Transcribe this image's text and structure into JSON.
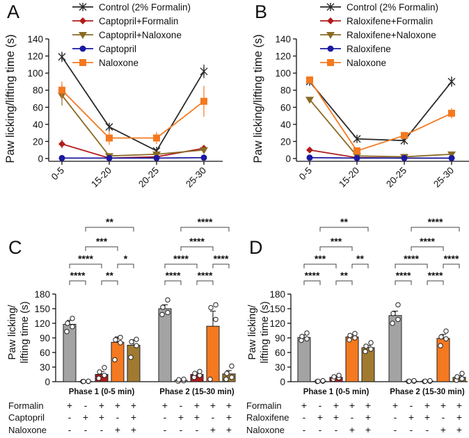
{
  "chart_data": [
    {
      "panel": "A",
      "type": "line",
      "title": "",
      "xlabel": "",
      "ylabel": "Paw licking/lifting time (s)",
      "categories": [
        "0-5",
        "15-20",
        "20-25",
        "25-30"
      ],
      "ylim": [
        0,
        140
      ],
      "yticks": [
        0,
        20,
        40,
        60,
        80,
        100,
        120,
        140
      ],
      "legend": "top",
      "series": [
        {
          "name": "Control (2% Formalin)",
          "marker": "x",
          "color": "#2a2a2a",
          "values": [
            119,
            37,
            9,
            102
          ],
          "errors": [
            6,
            3,
            3,
            8
          ]
        },
        {
          "name": "Captopril+Formalin",
          "marker": "diamond",
          "color": "#b01c1c",
          "values": [
            17,
            0.5,
            2,
            12
          ],
          "errors": [
            5,
            0.5,
            1,
            2
          ]
        },
        {
          "name": "Captopril+Naloxone",
          "marker": "triangle-down",
          "color": "#8a6a24",
          "values": [
            74,
            3,
            5,
            10
          ],
          "errors": [
            12,
            1,
            2,
            3
          ]
        },
        {
          "name": "Captopril",
          "marker": "circle",
          "color": "#1a1aa0",
          "values": [
            0.5,
            0.5,
            0.5,
            1
          ],
          "errors": [
            0,
            0,
            0,
            0
          ]
        },
        {
          "name": "Naloxone",
          "marker": "square",
          "color": "#f47920",
          "values": [
            80,
            24,
            24,
            67
          ],
          "errors": [
            10,
            8,
            7,
            18
          ]
        }
      ]
    },
    {
      "panel": "B",
      "type": "line",
      "title": "",
      "xlabel": "",
      "ylabel": "Paw licking/lifting time (s)",
      "categories": [
        "0-5",
        "15-20",
        "20-25",
        "25-30"
      ],
      "ylim": [
        0,
        140
      ],
      "yticks": [
        0,
        20,
        40,
        60,
        80,
        100,
        120,
        140
      ],
      "legend": "top",
      "series": [
        {
          "name": "Control (2% Formalin)",
          "marker": "x",
          "color": "#2a2a2a",
          "values": [
            90,
            23,
            21,
            90
          ],
          "errors": [
            3,
            2,
            2,
            6
          ]
        },
        {
          "name": "Raloxifene+Formalin",
          "marker": "diamond",
          "color": "#b01c1c",
          "values": [
            10,
            1,
            0.5,
            0.5
          ],
          "errors": [
            1,
            0.5,
            0.5,
            0.5
          ]
        },
        {
          "name": "Raloxifene+Naloxone",
          "marker": "triangle-down",
          "color": "#8a6a24",
          "values": [
            69,
            3,
            2,
            5
          ],
          "errors": [
            3,
            1,
            1,
            1
          ]
        },
        {
          "name": "Raloxifene",
          "marker": "circle",
          "color": "#1a1aa0",
          "values": [
            1,
            0.5,
            0.5,
            0.5
          ],
          "errors": [
            0,
            0,
            0,
            0
          ]
        },
        {
          "name": "Naloxone",
          "marker": "square",
          "color": "#f47920",
          "values": [
            92,
            9,
            27,
            53
          ],
          "errors": [
            3,
            3,
            3,
            6
          ]
        }
      ]
    },
    {
      "panel": "C",
      "type": "bar",
      "title": "",
      "xlabel": "",
      "ylabel": "Paw licking/ lifting time (s)",
      "ylim": [
        0,
        180
      ],
      "yticks": [
        0,
        30,
        60,
        90,
        120,
        150,
        180
      ],
      "phases": [
        "Phase 1 (0-5 min)",
        "Phase 2 (15-30 min)"
      ],
      "group_colors": [
        "#a3a3a3",
        "#ffffff",
        "#b01c1c",
        "#f47920",
        "#a07a30"
      ],
      "groups": [
        {
          "values": [
            118,
            0.5,
            15,
            81,
            75
          ],
          "errors": [
            8,
            0.5,
            6,
            11,
            11
          ],
          "points": [
            [
              103,
              113,
              120,
              130
            ],
            [
              0.5,
              0.5,
              0.5,
              1
            ],
            [
              7,
              13,
              20,
              29
            ],
            [
              45,
              80,
              86,
              91
            ],
            [
              50,
              74,
              82,
              87
            ]
          ]
        },
        {
          "values": [
            150,
            3,
            15,
            114,
            16
          ],
          "errors": [
            8,
            1,
            3,
            31,
            7
          ],
          "points": [
            [
              138,
              142,
              153,
              168
            ],
            [
              1,
              2,
              4,
              5
            ],
            [
              9,
              13,
              17,
              21
            ],
            [
              5,
              128,
              152,
              158
            ],
            [
              5,
              9,
              17,
              32
            ]
          ]
        }
      ],
      "sig": [
        {
          "p": 0,
          "a": 0,
          "b": 1,
          "level": 0,
          "label": "****"
        },
        {
          "p": 0,
          "a": 2,
          "b": 3,
          "level": 0,
          "label": "**"
        },
        {
          "p": 0,
          "a": 0,
          "b": 2,
          "level": 1,
          "label": "****"
        },
        {
          "p": 0,
          "a": 3,
          "b": 4,
          "level": 1,
          "label": "*"
        },
        {
          "p": 0,
          "a": 1,
          "b": 3,
          "level": 2,
          "label": "***"
        },
        {
          "p": 0,
          "a": 1,
          "b": 4,
          "level": 3,
          "label": "**"
        },
        {
          "p": 1,
          "a": 0,
          "b": 1,
          "level": 0,
          "label": "****"
        },
        {
          "p": 1,
          "a": 2,
          "b": 3,
          "level": 0,
          "label": "****"
        },
        {
          "p": 1,
          "a": 0,
          "b": 2,
          "level": 1,
          "label": "****"
        },
        {
          "p": 1,
          "a": 3,
          "b": 4,
          "level": 1,
          "label": "****"
        },
        {
          "p": 1,
          "a": 1,
          "b": 3,
          "level": 2,
          "label": "****"
        },
        {
          "p": 1,
          "a": 1,
          "b": 4,
          "level": 3,
          "label": "****"
        }
      ],
      "row_labels": [
        "Formalin",
        "Captopril",
        "Naloxone"
      ],
      "rows": [
        [
          "+",
          "-",
          "+",
          "+",
          "+"
        ],
        [
          "-",
          "+",
          "+",
          "-",
          "+"
        ],
        [
          "-",
          "-",
          "-",
          "+",
          "+"
        ]
      ]
    },
    {
      "panel": "D",
      "type": "bar",
      "title": "",
      "xlabel": "",
      "ylabel": "Paw licking/ lifting time (s)",
      "ylim": [
        0,
        180
      ],
      "yticks": [
        0,
        30,
        60,
        90,
        120,
        150,
        180
      ],
      "phases": [
        "Phase 1 (0-5 min)",
        "Phase 2 (15-30 min)"
      ],
      "group_colors": [
        "#a3a3a3",
        "#ffffff",
        "#b01c1c",
        "#f47920",
        "#a07a30"
      ],
      "groups": [
        {
          "values": [
            91,
            1,
            9,
            92,
            70
          ],
          "errors": [
            5,
            0.5,
            2,
            4,
            4
          ],
          "points": [
            [
              85,
              88,
              93,
              100
            ],
            [
              0.5,
              1,
              1,
              2
            ],
            [
              5,
              8,
              10,
              13
            ],
            [
              86,
              90,
              95,
              99
            ],
            [
              62,
              67,
              73,
              80
            ]
          ]
        },
        {
          "values": [
            136,
            1,
            1,
            89,
            9
          ],
          "errors": [
            9,
            0.5,
            0.5,
            8,
            3
          ],
          "points": [
            [
              120,
              128,
              140,
              158
            ],
            [
              0.5,
              1,
              1,
              2
            ],
            [
              0.5,
              1,
              1,
              2
            ],
            [
              74,
              88,
              92,
              104
            ],
            [
              3,
              6,
              10,
              17
            ]
          ]
        }
      ],
      "sig": [
        {
          "p": 0,
          "a": 0,
          "b": 1,
          "level": 0,
          "label": "****"
        },
        {
          "p": 0,
          "a": 2,
          "b": 3,
          "level": 0,
          "label": "**"
        },
        {
          "p": 0,
          "a": 0,
          "b": 2,
          "level": 1,
          "label": "***"
        },
        {
          "p": 0,
          "a": 3,
          "b": 4,
          "level": 1,
          "label": "**"
        },
        {
          "p": 0,
          "a": 1,
          "b": 3,
          "level": 2,
          "label": "***"
        },
        {
          "p": 0,
          "a": 1,
          "b": 4,
          "level": 3,
          "label": "**"
        },
        {
          "p": 1,
          "a": 0,
          "b": 1,
          "level": 0,
          "label": "****"
        },
        {
          "p": 1,
          "a": 2,
          "b": 3,
          "level": 0,
          "label": "****"
        },
        {
          "p": 1,
          "a": 0,
          "b": 2,
          "level": 1,
          "label": "****"
        },
        {
          "p": 1,
          "a": 3,
          "b": 4,
          "level": 1,
          "label": "****"
        },
        {
          "p": 1,
          "a": 1,
          "b": 3,
          "level": 2,
          "label": "****"
        },
        {
          "p": 1,
          "a": 1,
          "b": 4,
          "level": 3,
          "label": "****"
        }
      ],
      "row_labels": [
        "Formalin",
        "Raloxifene",
        "Naloxone"
      ],
      "rows": [
        [
          "+",
          "-",
          "+",
          "+",
          "+"
        ],
        [
          "-",
          "+",
          "+",
          "-",
          "+"
        ],
        [
          "-",
          "-",
          "-",
          "+",
          "+"
        ]
      ]
    }
  ]
}
